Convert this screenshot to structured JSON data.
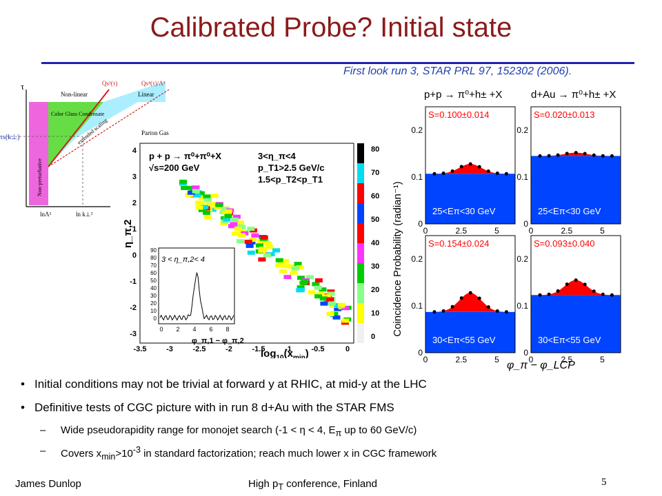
{
  "slide": {
    "title": "Calibrated Probe?  Initial state",
    "reference": "First look run 3, STAR PRL 97, 152302 (2006).",
    "footer": {
      "author": "James Dunlop",
      "conference_pre": "High p",
      "conference_sub": "T",
      "conference_post": " conference, Finland",
      "page": "5"
    }
  },
  "phase_diagram": {
    "y_axis": "τ",
    "tau_s_label": "τs(k⊥)",
    "x_ticks": [
      "lnΛ²",
      "ln k⊥²"
    ],
    "regions": [
      "Non-linear",
      "Linear",
      "Color Glass Condensate",
      "extended scaling",
      "Parton Gas",
      "Non-perturbative"
    ],
    "curves": [
      "Qs²(τ)",
      "Qs⁴(τ)/Λ²"
    ],
    "colors": {
      "cgc": "#66dd44",
      "scaling": "#aaeeff",
      "nonpert": "#ee66dd",
      "line": "#cc2020"
    }
  },
  "correlation_plot": {
    "reaction": "p + p → π⁰+π⁰+X",
    "energy": "√s=200 GeV",
    "cuts": [
      "3<η_π<4",
      "p_T1>2.5 GeV/c",
      "1.5<p_T2<p_T1"
    ],
    "y_label": "η_π,2",
    "x_label_main": "log",
    "x_label_sub": "10",
    "x_label_arg": "(x",
    "x_label_argsub": "min",
    "x_label_end": ")",
    "x_ticks": [
      "-3.5",
      "-3",
      "-2.5",
      "-2",
      "-1.5",
      "-1",
      "-0.5",
      "0"
    ],
    "y_ticks": [
      "4",
      "3",
      "2",
      "1",
      "0",
      "-1",
      "-2",
      "-3"
    ],
    "colorbar_ticks": [
      "80",
      "70",
      "60",
      "50",
      "40",
      "30",
      "20",
      "10",
      "0"
    ],
    "colorbar_colors": [
      "#f0f0f0",
      "#ffff00",
      "#88ff88",
      "#00cc00",
      "#ff33ff",
      "#ff0000",
      "#0044ff",
      "#ff0000",
      "#00ddee",
      "#000000"
    ],
    "inset": {
      "label": "3 < η_π,2< 4",
      "y_ticks": [
        "90",
        "80",
        "70",
        "60",
        "50",
        "40",
        "30",
        "20",
        "10",
        "0"
      ],
      "x_ticks": [
        "0",
        "2",
        "4",
        "6",
        "8"
      ],
      "x_label": "φ_π,1 − φ_π,2"
    }
  },
  "coincidence_plots": {
    "headers": [
      "p+p → π⁰+h± +X",
      "d+Au → π⁰+h± +X"
    ],
    "y_label": "Coincidence Probability (radian⁻¹)",
    "x_label": "φ_π − φ_LCP",
    "y_ticks": [
      "0.2",
      "0.1",
      "0"
    ],
    "x_ticks": [
      "0",
      "2.5",
      "5"
    ],
    "colors": {
      "peak": "#ff0000",
      "pedestal": "#0044ff",
      "label": "#ffffff",
      "s_label": "#ff0000"
    },
    "panels": [
      {
        "s_label": "S=0.100±0.014",
        "range": "25<Eπ<30 GeV",
        "pedestal": 0.107,
        "peak": 0.128
      },
      {
        "s_label": "S=0.020±0.013",
        "range": "25<Eπ<30 GeV",
        "pedestal": 0.145,
        "peak": 0.152
      },
      {
        "s_label": "S=0.154±0.024",
        "range": "30<Eπ<55 GeV",
        "pedestal": 0.087,
        "peak": 0.128
      },
      {
        "s_label": "S=0.093±0.040",
        "range": "30<Eπ<55 GeV",
        "pedestal": 0.123,
        "peak": 0.155
      }
    ]
  },
  "bullets": {
    "b1": "Initial conditions may not be trivial at forward y at RHIC, at mid-y at the LHC",
    "b2": "Definitive tests of CGC picture with in run 8 d+Au with the STAR FMS",
    "s1_pre": "Wide pseudorapidity range for monojet search (-1 < ",
    "s1_eta": "η",
    "s1_mid": " < 4, E",
    "s1_sub": "π",
    "s1_post": " up to 60 GeV/c)",
    "s2_pre": "Covers x",
    "s2_sub": "min",
    "s2_mid": ">10",
    "s2_sup": "-3",
    "s2_post": " in standard factorization; reach much lower x in CGC framework"
  }
}
